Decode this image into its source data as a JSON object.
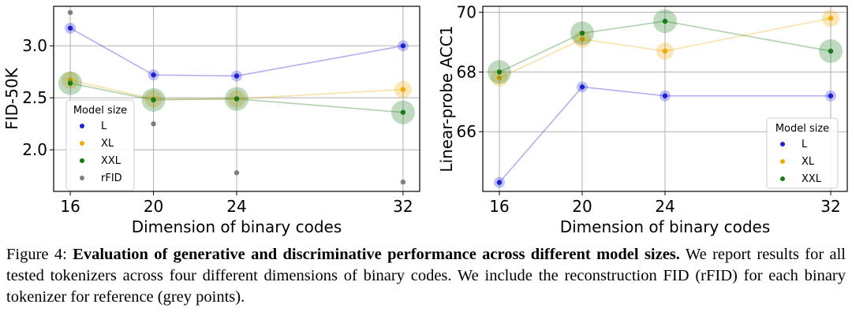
{
  "chart_data": [
    {
      "type": "scatter",
      "ylabel": "FID-50K",
      "xlabel": "Dimension of binary codes",
      "x": [
        16,
        20,
        24,
        32
      ],
      "xticks": [
        "16",
        "20",
        "24",
        "32"
      ],
      "yticks": [
        2.0,
        2.5,
        3.0
      ],
      "ytick_labels": [
        "2.0",
        "2.5",
        "3.0"
      ],
      "xlim": [
        15.2,
        32.8
      ],
      "ylim": [
        1.6,
        3.38
      ],
      "grid": true,
      "legend_title": "Model size",
      "legend_position": "lower-left",
      "series": [
        {
          "name": "L",
          "color": "#1f1fd6",
          "values": [
            3.17,
            2.72,
            2.71,
            3.0
          ],
          "line": true
        },
        {
          "name": "XL",
          "color": "#f2a900",
          "values": [
            2.67,
            2.49,
            2.49,
            2.58
          ],
          "line": true
        },
        {
          "name": "XXL",
          "color": "#1a7a1a",
          "values": [
            2.64,
            2.48,
            2.49,
            2.36
          ],
          "line": true
        },
        {
          "name": "rFID",
          "color": "#7f7f7f",
          "values": [
            3.32,
            2.25,
            1.78,
            1.69
          ],
          "line": false
        }
      ]
    },
    {
      "type": "scatter",
      "ylabel": "Linear-probe ACC1",
      "xlabel": "Dimension of binary codes",
      "x": [
        16,
        20,
        24,
        32
      ],
      "xticks": [
        "16",
        "20",
        "24",
        "32"
      ],
      "yticks": [
        66,
        68,
        70
      ],
      "ytick_labels": [
        "66",
        "68",
        "70"
      ],
      "xlim": [
        15.2,
        32.8
      ],
      "ylim": [
        64.0,
        70.2
      ],
      "grid": true,
      "legend_title": "Model size",
      "legend_position": "lower-right",
      "series": [
        {
          "name": "L",
          "color": "#1f1fd6",
          "values": [
            64.3,
            67.5,
            67.2,
            67.2
          ],
          "line": true
        },
        {
          "name": "XL",
          "color": "#f2a900",
          "values": [
            67.8,
            69.1,
            68.7,
            69.8
          ],
          "line": true
        },
        {
          "name": "XXL",
          "color": "#1a7a1a",
          "values": [
            68.0,
            69.3,
            69.7,
            68.7
          ],
          "line": true
        }
      ]
    }
  ],
  "caption": {
    "label": "Figure 4:",
    "bold": "Evaluation of generative and discriminative performance across different model sizes.",
    "text": "We report results for all tested tokenizers across four different dimensions of binary codes. We include the reconstruction FID (rFID) for each binary tokenizer for reference (grey points)."
  }
}
